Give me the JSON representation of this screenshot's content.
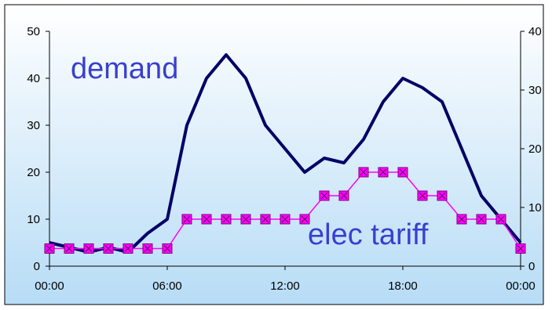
{
  "chart_data": {
    "type": "line",
    "x": [
      "00:00",
      "01:00",
      "02:00",
      "03:00",
      "04:00",
      "05:00",
      "06:00",
      "07:00",
      "08:00",
      "09:00",
      "10:00",
      "11:00",
      "12:00",
      "13:00",
      "14:00",
      "15:00",
      "16:00",
      "17:00",
      "18:00",
      "19:00",
      "20:00",
      "21:00",
      "22:00",
      "23:00",
      "00:00"
    ],
    "x_ticks": [
      "00:00",
      "06:00",
      "12:00",
      "18:00",
      "00:00"
    ],
    "x_tick_index": [
      0,
      6,
      12,
      18,
      24
    ],
    "y_left": {
      "ylim": [
        0,
        50
      ],
      "ticks": [
        "0",
        "10",
        "20",
        "30",
        "40",
        "50"
      ],
      "tick_values": [
        0,
        10,
        20,
        30,
        40,
        50
      ]
    },
    "y_right": {
      "ylim": [
        0,
        40
      ],
      "ticks": [
        "0",
        "10",
        "20",
        "30",
        "40"
      ],
      "tick_values": [
        0,
        10,
        20,
        30,
        40
      ]
    },
    "grid": false,
    "series": [
      {
        "axis": "left",
        "values": [
          5,
          4,
          3,
          4,
          3,
          7,
          10,
          30,
          40,
          45,
          40,
          30,
          25,
          20,
          23,
          22,
          27,
          35,
          40,
          38,
          35,
          25,
          15,
          10,
          5
        ],
        "color": "#000066",
        "marker": "none"
      },
      {
        "axis": "right",
        "values": [
          3,
          3,
          3,
          3,
          3,
          3,
          3,
          8,
          8,
          8,
          8,
          8,
          8,
          8,
          12,
          12,
          16,
          16,
          16,
          12,
          12,
          8,
          8,
          8,
          3
        ],
        "color": "#ff00ff",
        "marker": "square-x"
      }
    ],
    "annotations": [
      {
        "text": "demand",
        "series_index": 0
      },
      {
        "text": "elec tariff",
        "series_index": 1
      }
    ],
    "colors": {
      "border": "#000000",
      "plot_top": "#ffffff",
      "plot_bottom": "#b7dcf6",
      "annotation": "#3a3fd0"
    }
  }
}
